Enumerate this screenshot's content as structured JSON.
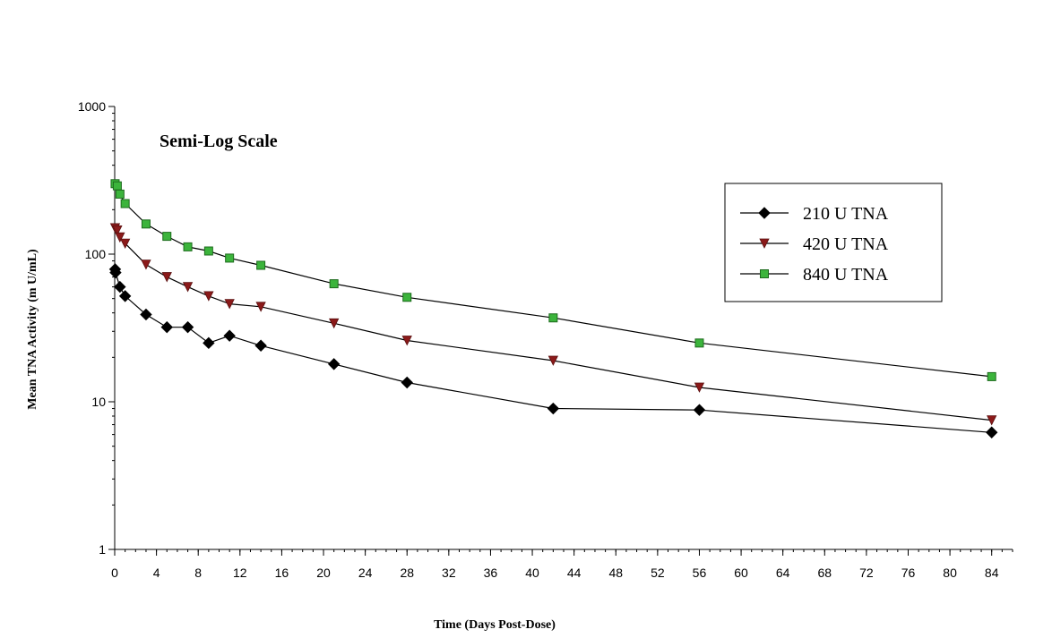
{
  "chart_data": {
    "type": "line",
    "title": "",
    "annotation": "Semi-Log Scale",
    "xlabel": "Time (Days Post-Dose)",
    "ylabel": "Mean TNA Activity (m U/mL)",
    "xlim": [
      0,
      86
    ],
    "ylim": [
      1,
      1000
    ],
    "yscale": "log",
    "xticks": [
      0,
      4,
      8,
      12,
      16,
      20,
      24,
      28,
      32,
      36,
      40,
      44,
      48,
      52,
      56,
      60,
      64,
      68,
      72,
      76,
      80,
      84
    ],
    "yticks": [
      1,
      10,
      100,
      1000
    ],
    "grid": false,
    "legend_position": "top-right",
    "series": [
      {
        "name": "210 U TNA",
        "marker": "diamond",
        "color": "#000000",
        "points": [
          [
            0.04,
            79
          ],
          [
            0.08,
            75
          ],
          [
            0.5,
            60
          ],
          [
            1,
            52
          ],
          [
            3,
            39
          ],
          [
            5,
            32
          ],
          [
            7,
            32
          ],
          [
            9,
            25
          ],
          [
            11,
            28
          ],
          [
            14,
            24
          ],
          [
            21,
            18
          ],
          [
            28,
            13.5
          ],
          [
            42,
            9
          ],
          [
            56,
            8.8
          ],
          [
            84,
            6.2
          ]
        ]
      },
      {
        "name": "420 U TNA",
        "marker": "triangle-down",
        "color": "#8b1a1a",
        "points": [
          [
            0.04,
            150
          ],
          [
            0.25,
            145
          ],
          [
            0.5,
            130
          ],
          [
            1,
            118
          ],
          [
            3,
            85
          ],
          [
            5,
            70
          ],
          [
            7,
            60
          ],
          [
            9,
            52
          ],
          [
            11,
            46
          ],
          [
            14,
            44
          ],
          [
            21,
            34
          ],
          [
            28,
            26
          ],
          [
            42,
            19
          ],
          [
            56,
            12.5
          ],
          [
            84,
            7.5
          ]
        ]
      },
      {
        "name": "840 U TNA",
        "marker": "square",
        "color": "#3cb43c",
        "points": [
          [
            0.04,
            300
          ],
          [
            0.25,
            290
          ],
          [
            0.5,
            255
          ],
          [
            1,
            220
          ],
          [
            3,
            160
          ],
          [
            5,
            132
          ],
          [
            7,
            112
          ],
          [
            9,
            105
          ],
          [
            11,
            94
          ],
          [
            14,
            84
          ],
          [
            21,
            63
          ],
          [
            28,
            51
          ],
          [
            42,
            37
          ],
          [
            56,
            25
          ],
          [
            84,
            14.8
          ]
        ]
      }
    ]
  }
}
